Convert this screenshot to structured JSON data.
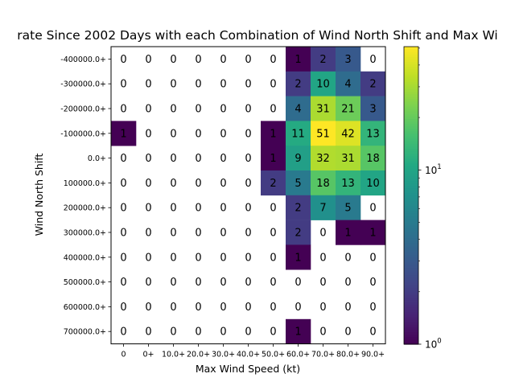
{
  "chart_data": {
    "type": "heatmap",
    "title": "rate Since 2002 Days with each Combination of Wind North Shift and Max Wi",
    "xlabel": "Max Wind Speed (kt)",
    "ylabel": "Wind North Shift",
    "x_categories": [
      "0",
      "0+",
      "10.0+",
      "20.0+",
      "30.0+",
      "40.0+",
      "50.0+",
      "60.0+",
      "70.0+",
      "80.0+",
      "90.0+"
    ],
    "y_categories": [
      "-400000.0+",
      "-300000.0+",
      "-200000.0+",
      "-100000.0+",
      "0.0+",
      "100000.0+",
      "200000.0+",
      "300000.0+",
      "400000.0+",
      "500000.0+",
      "600000.0+",
      "700000.0+"
    ],
    "values": [
      [
        0,
        0,
        0,
        0,
        0,
        0,
        0,
        1,
        2,
        3,
        0
      ],
      [
        0,
        0,
        0,
        0,
        0,
        0,
        0,
        2,
        10,
        4,
        2
      ],
      [
        0,
        0,
        0,
        0,
        0,
        0,
        0,
        4,
        31,
        21,
        3
      ],
      [
        1,
        0,
        0,
        0,
        0,
        0,
        1,
        11,
        51,
        42,
        13
      ],
      [
        0,
        0,
        0,
        0,
        0,
        0,
        1,
        9,
        32,
        31,
        18
      ],
      [
        0,
        0,
        0,
        0,
        0,
        0,
        2,
        5,
        18,
        13,
        10
      ],
      [
        0,
        0,
        0,
        0,
        0,
        0,
        0,
        2,
        7,
        5,
        0
      ],
      [
        0,
        0,
        0,
        0,
        0,
        0,
        0,
        2,
        0,
        1,
        1
      ],
      [
        0,
        0,
        0,
        0,
        0,
        0,
        0,
        1,
        0,
        0,
        0
      ],
      [
        0,
        0,
        0,
        0,
        0,
        0,
        0,
        0,
        0,
        0,
        0
      ],
      [
        0,
        0,
        0,
        0,
        0,
        0,
        0,
        0,
        0,
        0,
        0
      ],
      [
        0,
        0,
        0,
        0,
        0,
        0,
        0,
        1,
        0,
        0,
        0
      ]
    ],
    "color_scale": "log",
    "colormap": "viridis",
    "zero_color": "#ffffff",
    "vmin": 1,
    "vmax": 51,
    "colorbar_ticks": [
      {
        "label": "10",
        "exp": "0",
        "value": 1
      },
      {
        "label": "10",
        "exp": "1",
        "value": 10
      }
    ],
    "grid": false
  }
}
